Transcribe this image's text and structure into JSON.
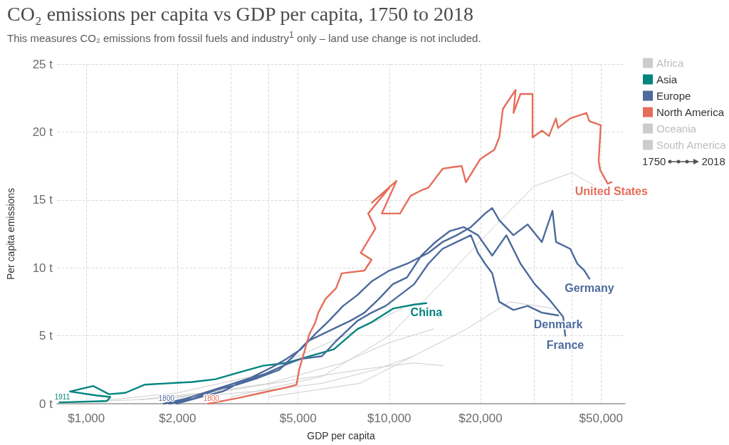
{
  "chart_data": {
    "type": "line",
    "title": "CO₂ emissions per capita vs GDP per capita, 1750 to 2018",
    "subtitle": "This measures CO₂ emissions from fossil fuels and industry$^{1}$ only – land use change is not included.",
    "xlabel": "GDP per capita",
    "ylabel": "Per capita emissions",
    "log": "x",
    "grid": true,
    "legend": "right",
    "line_style": "solid",
    "xlim": [
      800,
      60000
    ],
    "xticks": [
      {
        "value": 1000,
        "label": "$1,000"
      },
      {
        "value": 2000,
        "label": "$2,000"
      },
      {
        "value": 3000,
        "label": null
      },
      {
        "value": 4000,
        "label": null
      },
      {
        "value": 5000,
        "label": "$5,000"
      },
      {
        "value": 10000,
        "label": "$10,000"
      },
      {
        "value": 20000,
        "label": "$20,000"
      },
      {
        "value": 30000,
        "label": null
      },
      {
        "value": 40000,
        "label": null
      },
      {
        "value": 50000,
        "label": "$50,000"
      }
    ],
    "ylim": [
      0,
      25
    ],
    "yticks": [
      {
        "value": 0,
        "label": "0 t"
      },
      {
        "value": 5,
        "label": "5 t"
      },
      {
        "value": 10,
        "label": "10 t"
      },
      {
        "value": 15,
        "label": "15 t"
      },
      {
        "value": 20,
        "label": "20 t"
      },
      {
        "value": 25,
        "label": "25 t"
      }
    ],
    "series": [
      {
        "name": "Africa",
        "color": "#cccccc",
        "x": [
          900,
          1500,
          2500,
          4000,
          6000,
          9000,
          12000,
          null,
          1100,
          2000,
          3500,
          5000,
          8000,
          11000
        ],
        "values": [
          0.1,
          0.3,
          0.6,
          1.0,
          1.5,
          2.5,
          3.5,
          null,
          0.2,
          0.8,
          2.0,
          3.5,
          5.5,
          7.0
        ]
      },
      {
        "name": "Asia",
        "color": "#00847e",
        "x": [
          815,
          1170,
          1200,
          1084,
          883,
          1055,
          1188,
          1345,
          1556,
          1860,
          2235,
          2667,
          3189,
          3835,
          4580,
          5470,
          6560,
          7850,
          8740,
          10290,
          12090,
          13250
        ],
        "values": [
          0.1,
          0.2,
          0.5,
          0.6,
          0.9,
          1.3,
          0.7,
          0.8,
          1.4,
          1.5,
          1.6,
          1.8,
          2.3,
          2.8,
          3.0,
          3.5,
          4.0,
          5.5,
          6.0,
          7.0,
          7.3,
          7.4
        ]
      },
      {
        "name": "Europe",
        "color": "#4c6a9c",
        "x": [
          1800,
          2150,
          2530,
          2970,
          3490,
          4110,
          4580,
          5100,
          5680,
          6320,
          7040,
          7850,
          8740,
          10000,
          11440,
          13450,
          14980,
          16690,
          18590,
          20710,
          21860,
          23070,
          25690,
          28620,
          31880,
          34560,
          35510,
          39560,
          41750,
          44060,
          45750,
          null,
          1984,
          2395,
          2815,
          3310,
          3890,
          4580,
          5100,
          5990,
          6670,
          7850,
          8740,
          9730,
          10840,
          12080,
          13450,
          14980,
          16690,
          18590,
          19620,
          20710,
          21860,
          23070,
          25690,
          28620,
          31880,
          36090,
          null,
          1879,
          2270,
          2670,
          3137,
          3688,
          4335,
          4830,
          5380,
          5990,
          6670,
          7433,
          8280,
          9224,
          10270,
          11440,
          12750,
          14200,
          15810,
          17620,
          19620,
          21860,
          24340,
          27120,
          30210,
          33640,
          37480,
          38090
        ],
        "values": [
          0,
          0.4,
          0.9,
          1.4,
          1.9,
          2.7,
          3.3,
          4.0,
          5.1,
          6.1,
          7.2,
          8.0,
          9.0,
          9.8,
          10.3,
          11.1,
          11.9,
          12.4,
          13.0,
          14.0,
          14.4,
          13.5,
          12.4,
          13.2,
          11.9,
          14.2,
          11.9,
          11.4,
          10.3,
          9.8,
          9.2,
          null,
          0,
          0.5,
          0.9,
          1.7,
          2.2,
          2.9,
          3.3,
          3.5,
          4.6,
          6.1,
          6.7,
          7.2,
          8.0,
          8.8,
          10.3,
          11.4,
          11.9,
          12.4,
          11.1,
          10.3,
          9.6,
          7.5,
          6.9,
          7.2,
          6.7,
          6.5,
          null,
          0,
          0.4,
          1.0,
          1.4,
          1.9,
          2.5,
          3.5,
          4.6,
          5.1,
          5.6,
          6.1,
          6.7,
          7.7,
          8.8,
          9.3,
          10.9,
          11.9,
          12.7,
          13.0,
          12.4,
          10.9,
          12.4,
          10.3,
          8.8,
          7.7,
          6.4,
          5.0
        ]
      },
      {
        "name": "North America",
        "color": "#e56e5a",
        "x": [
          2530,
          3140,
          3790,
          4580,
          4940,
          5040,
          5240,
          5440,
          5680,
          5830,
          6150,
          6670,
          6970,
          8280,
          8740,
          8050,
          9000,
          8520,
          10000,
          8760,
          10560,
          9450,
          10850,
          11750,
          12740,
          13460,
          15000,
          16070,
          17330,
          17900,
          19950,
          22230,
          23070,
          23710,
          26120,
          25700,
          27100,
          29700,
          29700,
          31900,
          33650,
          35480,
          36060,
          39540,
          44770,
          45710,
          49890,
          49100,
          49660,
          52600,
          54080
        ],
        "values": [
          0,
          0.4,
          0.8,
          1.2,
          1.4,
          2.5,
          3.8,
          5.1,
          5.9,
          6.7,
          7.7,
          8.5,
          9.6,
          9.8,
          10.6,
          11.1,
          12.9,
          14.0,
          15.9,
          14.8,
          16.4,
          14.0,
          14.0,
          15.3,
          15.7,
          15.9,
          17.3,
          17.4,
          17.5,
          16.3,
          18.0,
          18.7,
          19.6,
          21.7,
          23.1,
          21.4,
          22.8,
          22.8,
          19.6,
          20.1,
          19.7,
          21.0,
          20.3,
          21.0,
          21.4,
          20.8,
          20.5,
          17.9,
          17.2,
          16.2,
          16.3
        ]
      },
      {
        "name": "Oceania",
        "color": "#cccccc",
        "x": [
          3000,
          6000,
          10000,
          15000,
          20000,
          30000,
          40000,
          48000,
          null,
          4000,
          8000,
          12000,
          18000,
          25000,
          35000
        ],
        "values": [
          0.5,
          2,
          5,
          9,
          12,
          16,
          17,
          16,
          null,
          0.5,
          1.5,
          3.5,
          5.5,
          7.5,
          7.0
        ]
      },
      {
        "name": "South America",
        "color": "#cccccc",
        "x": [
          1500,
          3000,
          5000,
          8000,
          12000,
          15000,
          null,
          2000,
          4000,
          7000,
          10000,
          14000
        ],
        "values": [
          0.3,
          1.0,
          1.8,
          2.5,
          3.0,
          2.8,
          null,
          0.5,
          1.5,
          3.0,
          4.5,
          5.5
        ]
      }
    ],
    "annotations": [
      {
        "text": "United States",
        "x": 54080,
        "y": 16.3
      },
      {
        "text": "China",
        "x": 13250,
        "y": 7.4
      },
      {
        "text": "Germany",
        "x": 45750,
        "y": 9.2
      },
      {
        "text": "Denmark",
        "x": 36090,
        "y": 6.5
      },
      {
        "text": "France",
        "x": 38090,
        "y": 5.0
      },
      {
        "text": "1911",
        "x": 815,
        "y": 0.1
      },
      {
        "text": "1800",
        "x": 1800,
        "y": 0
      },
      {
        "text": "1800",
        "x": 2530,
        "y": 0
      },
      "1750",
      "2018"
    ]
  }
}
